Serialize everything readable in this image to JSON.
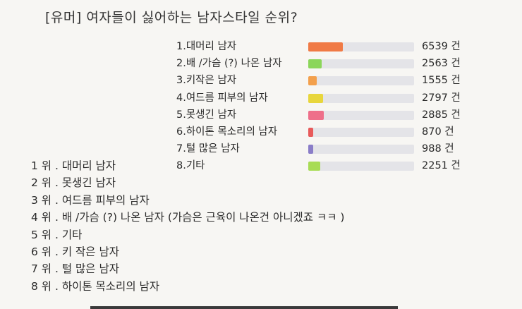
{
  "title": "[유머] 여자들이 싫어하는 남자스타일 순위?",
  "chart_data": {
    "type": "bar",
    "orientation": "horizontal",
    "max_value": 20000,
    "unit": "건",
    "items": [
      {
        "label": "1.대머리 남자",
        "value": 6539,
        "value_text": "6539 건",
        "color": "#f07a45"
      },
      {
        "label": "2.배 /가슴 (?) 나온 남자",
        "value": 2563,
        "value_text": "2563 건",
        "color": "#8bd65a"
      },
      {
        "label": "3.키작은 남자",
        "value": 1555,
        "value_text": "1555 건",
        "color": "#f3a04c"
      },
      {
        "label": "4.여드름 피부의 남자",
        "value": 2797,
        "value_text": "2797 건",
        "color": "#e8d63c"
      },
      {
        "label": "5.못생긴 남자",
        "value": 2885,
        "value_text": "2885 건",
        "color": "#ee6f8a"
      },
      {
        "label": "6.하이톤 목소리의 남자",
        "value": 870,
        "value_text": "870 건",
        "color": "#e85a5a"
      },
      {
        "label": "7.털 많은 남자",
        "value": 988,
        "value_text": "988 건",
        "color": "#8a7dc8"
      },
      {
        "label": "8.기타",
        "value": 2251,
        "value_text": "2251 건",
        "color": "#a8dc55"
      }
    ]
  },
  "ranking": [
    "1 위 . 대머리 남자",
    "2 위 . 못생긴 남자",
    "3 위 . 여드름 피부의 남자",
    "4 위 . 배 /가슴 (?) 나온 남자 (가슴은 근육이 나온건 아니겠죠 ㅋㅋ )",
    "5 위 . 기타",
    "6 위 . 키 작은 남자",
    "7 위 . 털 많은 남자",
    "8 위 . 하이톤 목소리의 남자"
  ]
}
